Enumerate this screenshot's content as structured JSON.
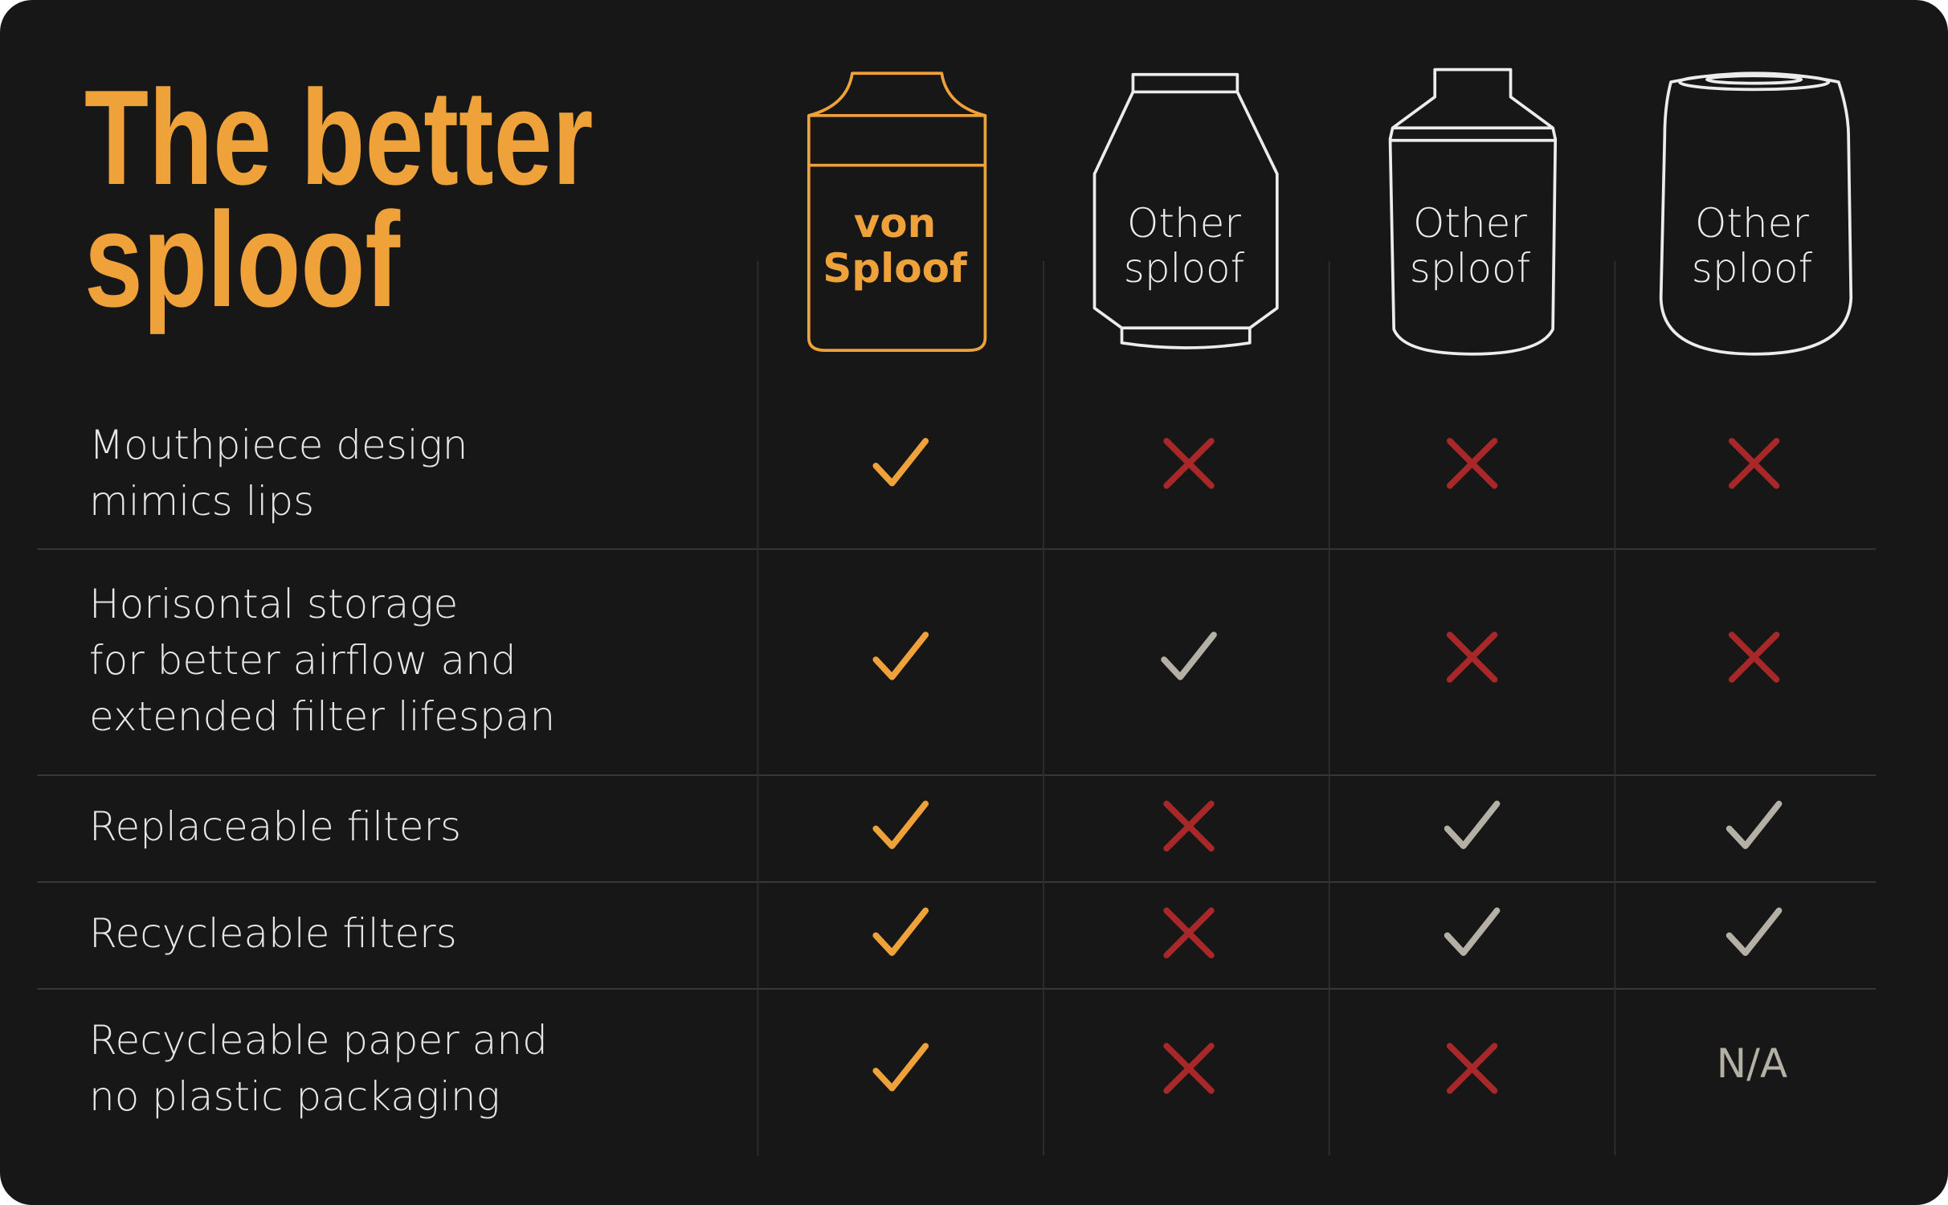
{
  "title": "The better\nsploof",
  "colors": {
    "background": "#171717",
    "accent": "#f0a23a",
    "cross": "#a8282a",
    "check_other": "#b5b0a5",
    "text": "#e6e6e6"
  },
  "products": [
    {
      "label": "von\nSploof",
      "highlight": true,
      "icon": "von-sploof-bottle-icon"
    },
    {
      "label": "Other\nsploof",
      "highlight": false,
      "icon": "bottle-icon"
    },
    {
      "label": "Other\nsploof",
      "highlight": false,
      "icon": "bottle-icon"
    },
    {
      "label": "Other\nsploof",
      "highlight": false,
      "icon": "cylinder-bottle-icon"
    }
  ],
  "rows": [
    {
      "feature": "Mouthpiece design\nmimics lips",
      "values": [
        "check",
        "cross",
        "cross",
        "cross"
      ]
    },
    {
      "feature": "Horisontal storage\nfor better airflow and\nextended filter lifespan",
      "values": [
        "check",
        "check",
        "cross",
        "cross"
      ]
    },
    {
      "feature": "Replaceable filters",
      "values": [
        "check",
        "cross",
        "check",
        "check"
      ]
    },
    {
      "feature": "Recycleable filters",
      "values": [
        "check",
        "cross",
        "check",
        "check"
      ]
    },
    {
      "feature": "Recycleable paper and\nno plastic packaging",
      "values": [
        "check",
        "cross",
        "cross",
        "N/A"
      ]
    }
  ]
}
